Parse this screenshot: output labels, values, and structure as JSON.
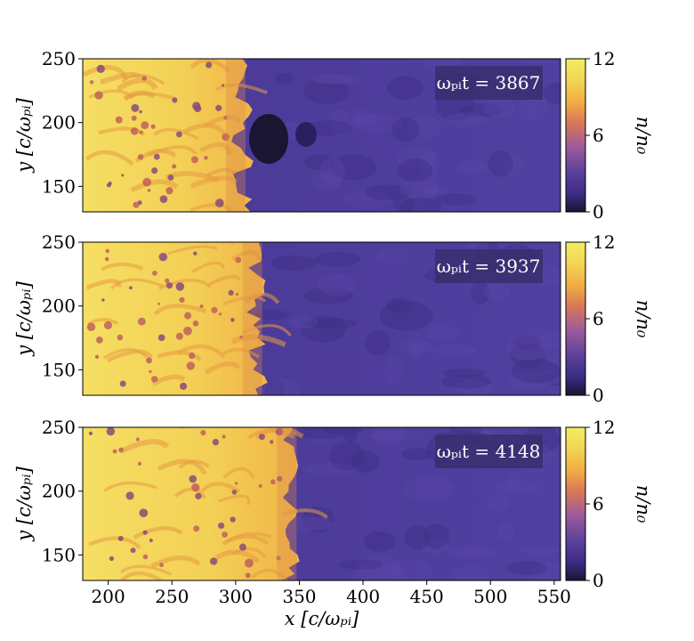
{
  "chart_data": {
    "type": "heatmap",
    "panels": [
      {
        "time_label": "ωₚᵢt = 3867",
        "front_x": 305
      },
      {
        "time_label": "ωₚᵢt = 3937",
        "front_x": 318
      },
      {
        "time_label": "ωₚᵢt = 4148",
        "front_x": 345
      }
    ],
    "xlim": [
      180,
      555
    ],
    "ylim": [
      130,
      250
    ],
    "x_ticks": [
      200,
      250,
      300,
      350,
      400,
      450,
      500,
      550
    ],
    "y_ticks": [
      150,
      200,
      250
    ],
    "xlabel": "x [c/ωₚᵢ]",
    "ylabel": "y [c/ωₚᵢ]",
    "colorbar": {
      "label": "n/n₀",
      "ticks": [
        0,
        6,
        12
      ],
      "range": [
        0,
        12
      ],
      "colors": [
        "#1a1530",
        "#3b2d86",
        "#5a3f9a",
        "#9a5a9c",
        "#d97757",
        "#f0ae44",
        "#f4d455",
        "#f2ee60"
      ]
    },
    "upstream_density": 2,
    "downstream_density": 10
  }
}
